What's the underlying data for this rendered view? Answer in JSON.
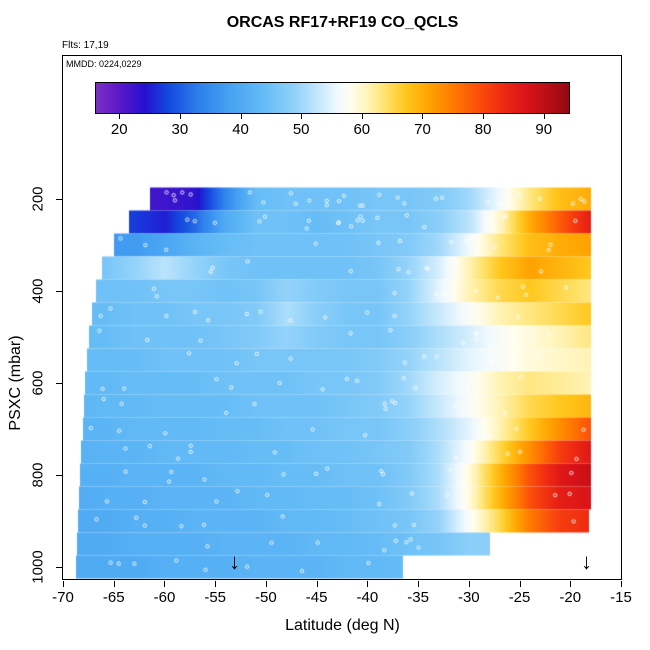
{
  "title": "ORCAS RF17+RF19 CO_QCLS",
  "annotations": {
    "flights": "Flts: 17,19",
    "mmdd": "MMDD: 0224,0229"
  },
  "axes": {
    "x_label": "Latitude (deg N)",
    "y_label": "PSXC (mbar)",
    "x_ticks": [
      -70,
      -65,
      -60,
      -55,
      -50,
      -45,
      -40,
      -35,
      -30,
      -25,
      -20,
      -15
    ],
    "y_ticks": [
      200,
      400,
      600,
      800,
      1000
    ],
    "x_range": [
      -70,
      -15
    ],
    "y_range": [
      200,
      1000
    ]
  },
  "colorbar": {
    "ticks": [
      20,
      30,
      40,
      50,
      60,
      70,
      80,
      90
    ],
    "range": [
      16,
      94
    ],
    "stops": [
      [
        16,
        "#7B2FC4"
      ],
      [
        20,
        "#5A18C8"
      ],
      [
        24,
        "#2311CF"
      ],
      [
        28,
        "#144ADF"
      ],
      [
        33,
        "#2E7FEB"
      ],
      [
        38,
        "#46A2F2"
      ],
      [
        44,
        "#66BDF6"
      ],
      [
        49,
        "#94D3FA"
      ],
      [
        53,
        "#C8E9FC"
      ],
      [
        56,
        "#F2FAFE"
      ],
      [
        58,
        "#FFFEF0"
      ],
      [
        61,
        "#FFF3B4"
      ],
      [
        64,
        "#FFE066"
      ],
      [
        67,
        "#FFC81E"
      ],
      [
        71,
        "#FFA200"
      ],
      [
        75,
        "#FF7A00"
      ],
      [
        79,
        "#FB4F0A"
      ],
      [
        83,
        "#EF2A12"
      ],
      [
        87,
        "#D91318"
      ],
      [
        91,
        "#B40D14"
      ],
      [
        94,
        "#930A10"
      ]
    ]
  },
  "chart_data": {
    "type": "heatmap",
    "title": "ORCAS RF17+RF19 CO_QCLS",
    "x_name": "latitude_deg_N",
    "y_name": "pressure_mbar",
    "value_name": "CO_ppb",
    "y_axis_reversed": true,
    "lats": [
      -69,
      -66,
      -63,
      -60,
      -57,
      -54,
      -51,
      -48,
      -45,
      -42,
      -39,
      -36,
      -33,
      -30,
      -27,
      -24,
      -21,
      -18
    ],
    "pressures": [
      200,
      250,
      300,
      350,
      400,
      450,
      500,
      550,
      600,
      650,
      700,
      750,
      800,
      850,
      900,
      950,
      1000
    ],
    "lat_min": [
      -61.5,
      -63.5,
      -65,
      -66.2,
      -66.8,
      -67.2,
      -67.5,
      -67.7,
      -67.9,
      -68,
      -68.1,
      -68.3,
      -68.4,
      -68.5,
      -68.6,
      -68.7,
      -68.8
    ],
    "lat_max": [
      -18,
      -18,
      -18,
      -18,
      -18,
      -18,
      -18,
      -18,
      -18,
      -18,
      -18,
      -18,
      -18,
      -18,
      -18.2,
      -28,
      -36.5
    ],
    "values": [
      [
        null,
        null,
        null,
        22,
        23,
        34,
        44,
        45,
        45,
        45,
        46,
        46,
        47,
        50,
        56,
        63,
        68,
        70
      ],
      [
        null,
        null,
        27,
        25,
        31,
        40,
        45,
        45,
        44,
        45,
        46,
        46,
        48,
        52,
        60,
        70,
        78,
        85
      ],
      [
        null,
        null,
        37,
        39,
        42,
        44,
        45,
        45,
        45,
        45,
        46,
        47,
        50,
        56,
        63,
        68,
        70,
        71
      ],
      [
        null,
        46,
        49,
        52,
        49,
        46,
        45,
        45,
        45,
        45,
        46,
        49,
        54,
        61,
        67,
        71,
        69,
        67
      ],
      [
        null,
        45,
        45,
        46,
        46,
        45,
        46,
        49,
        47,
        46,
        46,
        49,
        55,
        61,
        65,
        67,
        65,
        63
      ],
      [
        null,
        44,
        45,
        45,
        46,
        46,
        47,
        51,
        48,
        46,
        46,
        49,
        53,
        57,
        61,
        63,
        65,
        67
      ],
      [
        44,
        44,
        45,
        45,
        45,
        46,
        47,
        49,
        47,
        46,
        46,
        48,
        51,
        54,
        57,
        59,
        61,
        63
      ],
      [
        44,
        44,
        44,
        45,
        45,
        45,
        46,
        46,
        46,
        46,
        47,
        49,
        52,
        55,
        57,
        59,
        60,
        61
      ],
      [
        43,
        43,
        44,
        44,
        44,
        45,
        45,
        45,
        46,
        46,
        47,
        50,
        54,
        57,
        61,
        63,
        62,
        61
      ],
      [
        42,
        43,
        43,
        44,
        44,
        44,
        45,
        45,
        45,
        46,
        47,
        49,
        53,
        57,
        61,
        65,
        67,
        69
      ],
      [
        42,
        42,
        43,
        43,
        43,
        44,
        44,
        45,
        45,
        46,
        46,
        48,
        51,
        55,
        61,
        67,
        73,
        79
      ],
      [
        41,
        42,
        42,
        43,
        43,
        43,
        44,
        44,
        45,
        45,
        46,
        47,
        51,
        57,
        65,
        73,
        81,
        86
      ],
      [
        41,
        41,
        42,
        42,
        42,
        43,
        43,
        44,
        44,
        45,
        45,
        47,
        51,
        59,
        69,
        79,
        86,
        89
      ],
      [
        40,
        41,
        41,
        42,
        42,
        42,
        43,
        43,
        44,
        44,
        45,
        47,
        51,
        59,
        69,
        79,
        85,
        87
      ],
      [
        40,
        40,
        41,
        41,
        42,
        42,
        42,
        43,
        43,
        44,
        45,
        46,
        49,
        57,
        65,
        75,
        81,
        83
      ],
      [
        40,
        40,
        41,
        41,
        41,
        42,
        42,
        42,
        43,
        43,
        44,
        45,
        46,
        48,
        null,
        null,
        null,
        null
      ],
      [
        40,
        40,
        40,
        41,
        41,
        41,
        42,
        42,
        42,
        43,
        43,
        44,
        null,
        null,
        null,
        null,
        null,
        null
      ]
    ]
  },
  "arrows": {
    "lats": [
      -53,
      -18.3
    ],
    "symbol": "↓"
  },
  "circles": {
    "seed": 20160224,
    "counts": [
      28,
      22,
      12,
      10,
      10,
      12,
      10,
      9,
      12,
      10,
      10,
      10,
      11,
      10,
      9,
      8,
      8
    ],
    "radius": 1.7
  }
}
